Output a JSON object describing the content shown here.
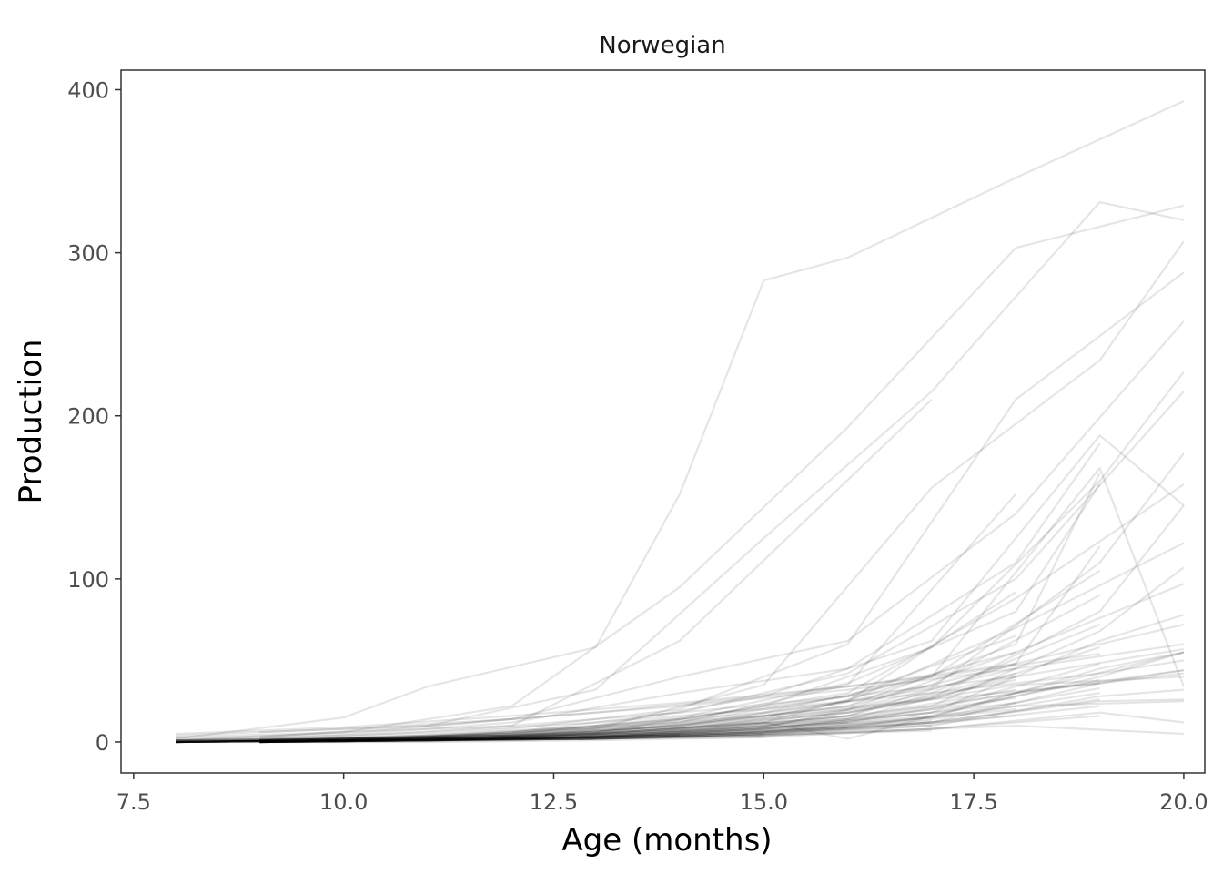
{
  "chart_data": {
    "type": "line",
    "title": "Norwegian",
    "xlabel": "Age (months)",
    "ylabel": "Production",
    "xlim": [
      7.35,
      20.25
    ],
    "ylim": [
      -19,
      412
    ],
    "x_ticks": [
      7.5,
      10.0,
      12.5,
      15.0,
      17.5,
      20.0
    ],
    "x_tick_labels": [
      "7.5",
      "10.0",
      "12.5",
      "15.0",
      "17.5",
      "20.0"
    ],
    "y_ticks": [
      0,
      100,
      200,
      300,
      400
    ],
    "y_tick_labels": [
      "0",
      "100",
      "200",
      "300",
      "400"
    ],
    "grid": false,
    "legend": "none",
    "line_color": "#000000",
    "line_opacity": 0.1,
    "series": [
      {
        "x": [
          8,
          10,
          11,
          13,
          14,
          15,
          16,
          18,
          20
        ],
        "values": [
          2,
          15,
          34,
          58,
          152,
          283,
          297,
          346,
          393
        ]
      },
      {
        "x": [
          8,
          10,
          12,
          14,
          16,
          18,
          20
        ],
        "values": [
          1,
          6,
          22,
          95,
          193,
          303,
          329
        ]
      },
      {
        "x": [
          9,
          11,
          13,
          15,
          17,
          19,
          20
        ],
        "values": [
          3,
          10,
          32,
          125,
          215,
          331,
          320
        ]
      },
      {
        "x": [
          8,
          10,
          12,
          14,
          17
        ],
        "values": [
          1,
          3,
          10,
          62,
          210
        ]
      },
      {
        "x": [
          9,
          11,
          13,
          15,
          17,
          19,
          20
        ],
        "values": [
          0,
          3,
          8,
          35,
          156,
          234,
          307
        ]
      },
      {
        "x": [
          8,
          10,
          12,
          14,
          16,
          18,
          20
        ],
        "values": [
          0,
          2,
          8,
          20,
          60,
          210,
          288
        ]
      },
      {
        "x": [
          8,
          10,
          12,
          14,
          16,
          18,
          20
        ],
        "values": [
          2,
          5,
          14,
          40,
          62,
          140,
          258
        ]
      },
      {
        "x": [
          8,
          10,
          12,
          14,
          16,
          18,
          19
        ],
        "values": [
          1,
          4,
          12,
          30,
          45,
          110,
          183
        ]
      },
      {
        "x": [
          9,
          11,
          13,
          15,
          17,
          19,
          20
        ],
        "values": [
          1,
          4,
          10,
          28,
          62,
          188,
          145
        ]
      },
      {
        "x": [
          9,
          11,
          13,
          15,
          17,
          19,
          20
        ],
        "values": [
          0,
          2,
          6,
          22,
          58,
          160,
          227
        ]
      },
      {
        "x": [
          8,
          10,
          12,
          14,
          16,
          18,
          19
        ],
        "values": [
          0,
          2,
          5,
          15,
          36,
          80,
          158
        ]
      },
      {
        "x": [
          9,
          11,
          13,
          15,
          17,
          19,
          20
        ],
        "values": [
          1,
          3,
          9,
          18,
          40,
          168,
          34
        ]
      },
      {
        "x": [
          8,
          10,
          12,
          14,
          16,
          18,
          20
        ],
        "values": [
          0,
          1,
          6,
          18,
          42,
          100,
          215
        ]
      },
      {
        "x": [
          9,
          11,
          13,
          15,
          17,
          19,
          20
        ],
        "values": [
          0,
          2,
          6,
          16,
          33,
          110,
          177
        ]
      },
      {
        "x": [
          8,
          10,
          12,
          14,
          16,
          18,
          20
        ],
        "values": [
          1,
          2,
          5,
          14,
          30,
          88,
          158
        ]
      },
      {
        "x": [
          9,
          11,
          13,
          15,
          17,
          19,
          20
        ],
        "values": [
          0,
          2,
          5,
          12,
          27,
          80,
          145
        ]
      },
      {
        "x": [
          8,
          10,
          12,
          14,
          16,
          18
        ],
        "values": [
          0,
          2,
          4,
          12,
          35,
          152
        ]
      },
      {
        "x": [
          8,
          10,
          12,
          14,
          16,
          18,
          20
        ],
        "values": [
          1,
          2,
          4,
          10,
          25,
          70,
          122
        ]
      },
      {
        "x": [
          9,
          11,
          13,
          15,
          17,
          19,
          20
        ],
        "values": [
          0,
          1,
          4,
          10,
          22,
          68,
          107
        ]
      },
      {
        "x": [
          8,
          10,
          12,
          14,
          16,
          18,
          20
        ],
        "values": [
          0,
          1,
          3,
          8,
          20,
          55,
          97
        ]
      },
      {
        "x": [
          9,
          11,
          13,
          15,
          17,
          19,
          20
        ],
        "values": [
          1,
          2,
          3,
          8,
          18,
          62,
          78
        ]
      },
      {
        "x": [
          8,
          10,
          12,
          14,
          16,
          18,
          20
        ],
        "values": [
          0,
          1,
          3,
          7,
          16,
          48,
          72
        ]
      },
      {
        "x": [
          9,
          11,
          13,
          15,
          17,
          19,
          20
        ],
        "values": [
          0,
          1,
          3,
          6,
          15,
          45,
          55
        ]
      },
      {
        "x": [
          8,
          10,
          12,
          14,
          16,
          18,
          20
        ],
        "values": [
          0,
          1,
          2,
          6,
          14,
          40,
          57
        ]
      },
      {
        "x": [
          9,
          11,
          13,
          15,
          17,
          19,
          20
        ],
        "values": [
          0,
          1,
          2,
          5,
          12,
          36,
          44
        ]
      },
      {
        "x": [
          8,
          10,
          12,
          14,
          16,
          18,
          20
        ],
        "values": [
          0,
          1,
          2,
          5,
          12,
          30,
          42
        ]
      },
      {
        "x": [
          9,
          11,
          13,
          15,
          17,
          19,
          20
        ],
        "values": [
          0,
          1,
          2,
          4,
          10,
          28,
          32
        ]
      },
      {
        "x": [
          8,
          10,
          12,
          14,
          16,
          18,
          20
        ],
        "values": [
          0,
          1,
          2,
          4,
          9,
          22,
          25
        ]
      },
      {
        "x": [
          9,
          11,
          13,
          15,
          17,
          19,
          20
        ],
        "values": [
          0,
          0,
          1,
          3,
          8,
          18,
          12
        ]
      },
      {
        "x": [
          8,
          10,
          12,
          14,
          16,
          18,
          20
        ],
        "values": [
          0,
          0,
          1,
          3,
          6,
          10,
          5
        ]
      },
      {
        "x": [
          8,
          10,
          12,
          14,
          16,
          18,
          19
        ],
        "values": [
          1,
          2,
          4,
          10,
          22,
          60,
          165
        ]
      },
      {
        "x": [
          9,
          11,
          13,
          15,
          17,
          19
        ],
        "values": [
          0,
          1,
          3,
          8,
          20,
          48
        ]
      },
      {
        "x": [
          8,
          10,
          12,
          14,
          16,
          18
        ],
        "values": [
          0,
          1,
          3,
          7,
          16,
          42
        ]
      },
      {
        "x": [
          9,
          11,
          13,
          15,
          17,
          19
        ],
        "values": [
          0,
          2,
          4,
          9,
          30,
          72
        ]
      },
      {
        "x": [
          8,
          10,
          12,
          14,
          16,
          18
        ],
        "values": [
          1,
          2,
          5,
          12,
          28,
          65
        ]
      },
      {
        "x": [
          9,
          11,
          13,
          15,
          17,
          19
        ],
        "values": [
          0,
          1,
          3,
          6,
          14,
          30
        ]
      },
      {
        "x": [
          8,
          10,
          12,
          14,
          16,
          18
        ],
        "values": [
          0,
          1,
          2,
          5,
          12,
          24
        ]
      },
      {
        "x": [
          9,
          11,
          13,
          15,
          17,
          19
        ],
        "values": [
          0,
          1,
          2,
          4,
          8,
          16
        ]
      },
      {
        "x": [
          8,
          10,
          12,
          14,
          16
        ],
        "values": [
          0,
          1,
          2,
          4,
          9
        ]
      },
      {
        "x": [
          9,
          11,
          13,
          15,
          17
        ],
        "values": [
          0,
          1,
          2,
          4,
          7
        ]
      },
      {
        "x": [
          8,
          10,
          12,
          14,
          16,
          18
        ],
        "values": [
          0,
          2,
          6,
          14,
          28,
          55
        ]
      },
      {
        "x": [
          9,
          11,
          13,
          15,
          17,
          19
        ],
        "values": [
          1,
          3,
          6,
          15,
          35,
          90
        ]
      },
      {
        "x": [
          8,
          10,
          12,
          14,
          16,
          18,
          19
        ],
        "values": [
          0,
          1,
          4,
          10,
          22,
          48,
          120
        ]
      },
      {
        "x": [
          9,
          11,
          13,
          15,
          17,
          19
        ],
        "values": [
          0,
          1,
          3,
          10,
          26,
          58
        ]
      },
      {
        "x": [
          8,
          10,
          12,
          14,
          16,
          18
        ],
        "values": [
          0,
          2,
          5,
          11,
          25,
          92
        ]
      },
      {
        "x": [
          9,
          11,
          13,
          15,
          17,
          19
        ],
        "values": [
          1,
          2,
          5,
          12,
          40,
          105
        ]
      },
      {
        "x": [
          8,
          10,
          12,
          14,
          16,
          18
        ],
        "values": [
          0,
          1,
          3,
          8,
          18,
          38
        ]
      },
      {
        "x": [
          9,
          11,
          13,
          15,
          16,
          18,
          20
        ],
        "values": [
          0,
          2,
          5,
          12,
          2,
          30,
          55
        ]
      },
      {
        "x": [
          8,
          10,
          12,
          14,
          16,
          18
        ],
        "values": [
          0,
          1,
          3,
          6,
          13,
          27
        ]
      },
      {
        "x": [
          9,
          11,
          13,
          15,
          17,
          19
        ],
        "values": [
          0,
          1,
          3,
          7,
          15,
          33
        ]
      },
      {
        "x": [
          8,
          10,
          12,
          14,
          16,
          18
        ],
        "values": [
          0,
          1,
          2,
          5,
          10,
          20
        ]
      },
      {
        "x": [
          9,
          11,
          13,
          15,
          17,
          19
        ],
        "values": [
          0,
          1,
          2,
          5,
          11,
          22
        ]
      },
      {
        "x": [
          8,
          10,
          12,
          14,
          16,
          18
        ],
        "values": [
          0,
          1,
          2,
          4,
          8,
          16
        ]
      },
      {
        "x": [
          9,
          11,
          13,
          15,
          17
        ],
        "values": [
          0,
          1,
          2,
          5,
          10
        ]
      },
      {
        "x": [
          8,
          10,
          12,
          14
        ],
        "values": [
          0,
          1,
          2,
          4
        ]
      },
      {
        "x": [
          9,
          11,
          13,
          15
        ],
        "values": [
          0,
          1,
          2,
          3
        ]
      },
      {
        "x": [
          8,
          10,
          12,
          14,
          16,
          18,
          20
        ],
        "values": [
          0,
          1,
          3,
          7,
          14,
          30,
          44
        ]
      },
      {
        "x": [
          9,
          11,
          13,
          15,
          17,
          19,
          20
        ],
        "values": [
          0,
          1,
          3,
          7,
          16,
          40,
          55
        ]
      },
      {
        "x": [
          8,
          10,
          12,
          14,
          16,
          18,
          20
        ],
        "values": [
          1,
          2,
          4,
          9,
          18,
          35,
          40
        ]
      },
      {
        "x": [
          9,
          11,
          13,
          15,
          17,
          19,
          20
        ],
        "values": [
          0,
          1,
          2,
          5,
          12,
          25,
          26
        ]
      },
      {
        "x": [
          8,
          10,
          12,
          14,
          16,
          18
        ],
        "values": [
          0,
          1,
          4,
          9,
          20,
          45
        ]
      },
      {
        "x": [
          9,
          11,
          13,
          15,
          17,
          19
        ],
        "values": [
          0,
          2,
          4,
          8,
          18,
          38
        ]
      },
      {
        "x": [
          8,
          10,
          12,
          14,
          16,
          18
        ],
        "values": [
          0,
          1,
          3,
          8,
          15,
          32
        ]
      },
      {
        "x": [
          9,
          11,
          13,
          15,
          17,
          19
        ],
        "values": [
          0,
          1,
          2,
          6,
          12,
          26
        ]
      },
      {
        "x": [
          8,
          10,
          12,
          14,
          16
        ],
        "values": [
          0,
          1,
          3,
          6,
          12
        ]
      },
      {
        "x": [
          9,
          11,
          13,
          15,
          17
        ],
        "values": [
          0,
          1,
          3,
          6,
          13
        ]
      },
      {
        "x": [
          8,
          10,
          12,
          14
        ],
        "values": [
          0,
          1,
          2,
          5
        ]
      },
      {
        "x": [
          9,
          11,
          13,
          15
        ],
        "values": [
          0,
          1,
          2,
          5
        ]
      },
      {
        "x": [
          8,
          10,
          12
        ],
        "values": [
          0,
          1,
          2
        ]
      },
      {
        "x": [
          9,
          11,
          13
        ],
        "values": [
          0,
          1,
          2
        ]
      },
      {
        "x": [
          8,
          10,
          12,
          14,
          16,
          18,
          20
        ],
        "values": [
          4,
          8,
          14,
          22,
          32,
          45,
          60
        ]
      },
      {
        "x": [
          9,
          11,
          13,
          15,
          17,
          19,
          20
        ],
        "values": [
          2,
          6,
          12,
          20,
          30,
          42,
          50
        ]
      },
      {
        "x": [
          8,
          10,
          12,
          14,
          16,
          18
        ],
        "values": [
          3,
          6,
          10,
          18,
          28,
          40
        ]
      },
      {
        "x": [
          9,
          11,
          13,
          15,
          17,
          19
        ],
        "values": [
          1,
          4,
          9,
          16,
          26,
          36
        ]
      },
      {
        "x": [
          8,
          10,
          12,
          14,
          16,
          18
        ],
        "values": [
          5,
          9,
          16,
          24,
          34,
          48
        ]
      },
      {
        "x": [
          9,
          11,
          13,
          15,
          17,
          19
        ],
        "values": [
          6,
          10,
          18,
          28,
          40,
          54
        ]
      }
    ]
  }
}
